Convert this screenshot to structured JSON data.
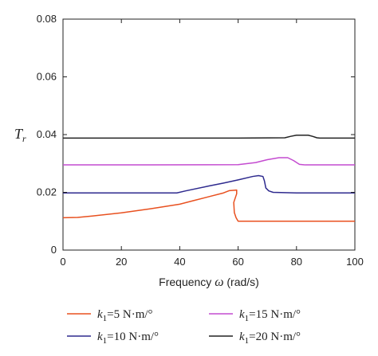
{
  "chart_data": {
    "type": "line",
    "xlabel_prefix": "Frequency ",
    "xlabel_symbol": "ω",
    "xlabel_unit": " (rad/s)",
    "ylabel_main": "T",
    "ylabel_sub": "r",
    "xlim": [
      0,
      100
    ],
    "ylim": [
      0,
      0.08
    ],
    "xticks": [
      0,
      20,
      40,
      60,
      80,
      100
    ],
    "xtick_labels": [
      "0",
      "20",
      "40",
      "60",
      "80",
      "100"
    ],
    "yticks": [
      0,
      0.02,
      0.04,
      0.06,
      0.08
    ],
    "ytick_labels": [
      "0",
      "0.02",
      "0.04",
      "0.06",
      "0.08"
    ],
    "grid": false,
    "legend_position": "bottom",
    "series": [
      {
        "legend_var": "k",
        "legend_sub": "1",
        "legend_value": "=5 N·m/°",
        "color": "#e8501f",
        "points": [
          [
            0,
            0.0112
          ],
          [
            5,
            0.0113
          ],
          [
            10,
            0.0118
          ],
          [
            20,
            0.0129
          ],
          [
            30,
            0.0143
          ],
          [
            40,
            0.0159
          ],
          [
            45,
            0.0172
          ],
          [
            50,
            0.0185
          ],
          [
            55,
            0.0198
          ],
          [
            57,
            0.0206
          ],
          [
            59.5,
            0.0208
          ],
          [
            59.5,
            0.0195
          ],
          [
            58.5,
            0.0165
          ],
          [
            58.7,
            0.013
          ],
          [
            59.3,
            0.0112
          ],
          [
            60,
            0.01
          ],
          [
            65,
            0.01
          ],
          [
            80,
            0.01
          ],
          [
            100,
            0.01
          ]
        ]
      },
      {
        "legend_var": "k",
        "legend_sub": "1",
        "legend_value": "=10 N·m/°",
        "color": "#2e2a8e",
        "points": [
          [
            0,
            0.0198
          ],
          [
            20,
            0.0198
          ],
          [
            39,
            0.0198
          ],
          [
            42,
            0.0205
          ],
          [
            50,
            0.0222
          ],
          [
            55,
            0.0232
          ],
          [
            60,
            0.0243
          ],
          [
            65,
            0.0255
          ],
          [
            67,
            0.0258
          ],
          [
            68.5,
            0.0255
          ],
          [
            69,
            0.024
          ],
          [
            69.5,
            0.0215
          ],
          [
            70.5,
            0.0205
          ],
          [
            72,
            0.02
          ],
          [
            80,
            0.0198
          ],
          [
            100,
            0.0198
          ]
        ]
      },
      {
        "legend_var": "k",
        "legend_sub": "1",
        "legend_value": "=15 N·m/°",
        "color": "#c44bd0",
        "points": [
          [
            0,
            0.0295
          ],
          [
            30,
            0.0295
          ],
          [
            60,
            0.0296
          ],
          [
            66,
            0.0303
          ],
          [
            70,
            0.0313
          ],
          [
            74,
            0.032
          ],
          [
            77,
            0.032
          ],
          [
            79,
            0.031
          ],
          [
            81,
            0.0297
          ],
          [
            83,
            0.0295
          ],
          [
            100,
            0.0295
          ]
        ]
      },
      {
        "legend_var": "k",
        "legend_sub": "1",
        "legend_value": "=20 N·m/°",
        "color": "#222222",
        "points": [
          [
            0,
            0.0388
          ],
          [
            60,
            0.0388
          ],
          [
            76,
            0.0389
          ],
          [
            78,
            0.0394
          ],
          [
            80,
            0.0398
          ],
          [
            84,
            0.0398
          ],
          [
            85.5,
            0.0394
          ],
          [
            87,
            0.0389
          ],
          [
            88,
            0.0388
          ],
          [
            100,
            0.0388
          ]
        ]
      }
    ]
  }
}
